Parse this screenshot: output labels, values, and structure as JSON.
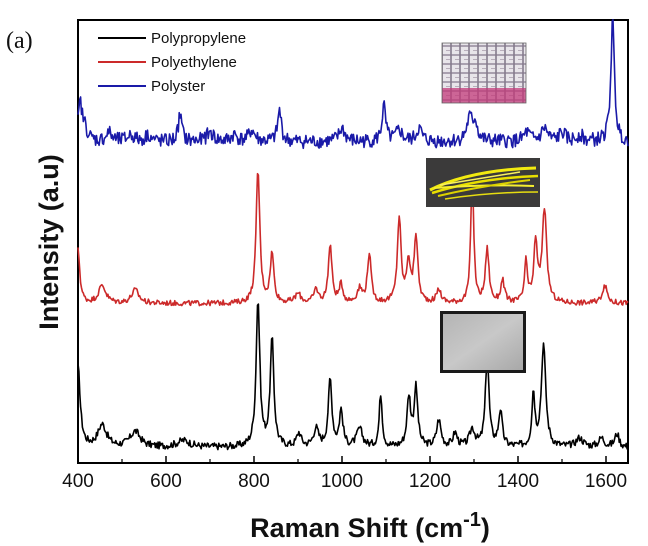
{
  "panel_label": "(a)",
  "chart_data": {
    "type": "line",
    "xlabel": "Raman Shift (cm",
    "xlabel_superscript": "-1",
    "xlabel_close": ")",
    "ylabel": "Intensity (a.u)",
    "xlim": [
      400,
      1650
    ],
    "ylim": [
      0,
      100
    ],
    "x_ticks": [
      400,
      600,
      800,
      1000,
      1200,
      1400,
      1600
    ],
    "y_ticks_shown": false,
    "grid": false,
    "legend_position": "top-left",
    "series": [
      {
        "name": "Polypropylene",
        "color": "#000000",
        "baseline": 3.5,
        "peaks": [
          [
            400,
            18,
            6
          ],
          [
            455,
            5,
            12
          ],
          [
            530,
            3.5,
            14
          ],
          [
            640,
            1.5,
            18
          ],
          [
            809,
            33,
            5
          ],
          [
            841,
            24,
            5
          ],
          [
            902,
            3,
            6
          ],
          [
            941,
            4,
            7
          ],
          [
            973,
            15,
            5
          ],
          [
            998,
            8,
            5
          ],
          [
            1040,
            4,
            8
          ],
          [
            1088,
            12,
            4
          ],
          [
            1152,
            11,
            5
          ],
          [
            1168,
            13,
            5
          ],
          [
            1220,
            6,
            6
          ],
          [
            1257,
            3,
            6
          ],
          [
            1296,
            4,
            7
          ],
          [
            1330,
            20,
            5
          ],
          [
            1360,
            8,
            5
          ],
          [
            1435,
            12,
            4
          ],
          [
            1458,
            23,
            6
          ],
          [
            1540,
            2,
            10
          ],
          [
            1590,
            2,
            8
          ],
          [
            1625,
            3,
            6
          ]
        ],
        "noise": 0.8
      },
      {
        "name": "Polyethylene",
        "color": "#cc2a2a",
        "baseline": 36,
        "peaks": [
          [
            400,
            12,
            5
          ],
          [
            455,
            4,
            10
          ],
          [
            530,
            3,
            10
          ],
          [
            809,
            30,
            5
          ],
          [
            841,
            11,
            5
          ],
          [
            900,
            2,
            8
          ],
          [
            941,
            3,
            6
          ],
          [
            973,
            13,
            5
          ],
          [
            998,
            4,
            5
          ],
          [
            1040,
            3,
            7
          ],
          [
            1062,
            11,
            5
          ],
          [
            1130,
            19,
            5
          ],
          [
            1151,
            9,
            5
          ],
          [
            1168,
            15,
            5
          ],
          [
            1220,
            3,
            6
          ],
          [
            1296,
            29,
            4
          ],
          [
            1330,
            12,
            5
          ],
          [
            1365,
            5,
            5
          ],
          [
            1418,
            9,
            4
          ],
          [
            1440,
            13,
            5
          ],
          [
            1460,
            21,
            6
          ],
          [
            1597,
            4,
            7
          ]
        ],
        "noise": 0.6
      },
      {
        "name": "Polyster",
        "color": "#1a1aa8",
        "baseline": 72.5,
        "peaks": [
          [
            405,
            8,
            5
          ],
          [
            415,
            3,
            8
          ],
          [
            470,
            2,
            8
          ],
          [
            520,
            1.5,
            10
          ],
          [
            560,
            1.5,
            8
          ],
          [
            632,
            6,
            5
          ],
          [
            700,
            2,
            10
          ],
          [
            755,
            1.5,
            8
          ],
          [
            795,
            2.5,
            8
          ],
          [
            858,
            7,
            5
          ],
          [
            1000,
            3,
            8
          ],
          [
            1095,
            8,
            5
          ],
          [
            1130,
            2.5,
            8
          ],
          [
            1175,
            3,
            7
          ],
          [
            1290,
            5,
            8
          ],
          [
            1303,
            4,
            6
          ],
          [
            1420,
            2,
            8
          ],
          [
            1460,
            3,
            8
          ],
          [
            1500,
            2,
            8
          ],
          [
            1540,
            1.5,
            8
          ],
          [
            1615,
            27,
            5
          ]
        ],
        "noise": 1.6
      }
    ]
  },
  "insets": [
    {
      "name": "polyester-fabric-photo"
    },
    {
      "name": "polyethylene-fiber-photo"
    },
    {
      "name": "polypropylene-sheet-photo"
    }
  ]
}
